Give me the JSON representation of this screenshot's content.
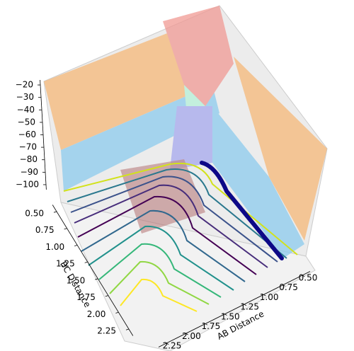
{
  "chart_data": {
    "type": "surface3d",
    "xlabel": "AB Distance",
    "ylabel": "BC Distance",
    "xlim": [
      0.4,
      2.35
    ],
    "ylim": [
      0.4,
      2.35
    ],
    "zlim": [
      -104,
      -16
    ],
    "xticks": [
      {
        "value": 0.5,
        "label": "0.50"
      },
      {
        "value": 0.75,
        "label": "0.75"
      },
      {
        "value": 1.0,
        "label": "1.00"
      },
      {
        "value": 1.25,
        "label": "1.25"
      },
      {
        "value": 1.5,
        "label": "1.50"
      },
      {
        "value": 1.75,
        "label": "1.75"
      },
      {
        "value": 2.0,
        "label": "2.00"
      },
      {
        "value": 2.25,
        "label": "2.25"
      }
    ],
    "yticks": [
      {
        "value": 0.5,
        "label": "0.50"
      },
      {
        "value": 0.75,
        "label": "0.75"
      },
      {
        "value": 1.0,
        "label": "1.00"
      },
      {
        "value": 1.25,
        "label": "1.25"
      },
      {
        "value": 1.5,
        "label": "1.50"
      },
      {
        "value": 1.75,
        "label": "1.75"
      },
      {
        "value": 2.0,
        "label": "2.00"
      },
      {
        "value": 2.25,
        "label": "2.25"
      }
    ],
    "zticks": [
      {
        "value": -20,
        "label": "−20"
      },
      {
        "value": -30,
        "label": "−30"
      },
      {
        "value": -40,
        "label": "−40"
      },
      {
        "value": -50,
        "label": "−50"
      },
      {
        "value": -60,
        "label": "−60"
      },
      {
        "value": -70,
        "label": "−70"
      },
      {
        "value": -80,
        "label": "−80"
      },
      {
        "value": -90,
        "label": "−90"
      },
      {
        "value": -100,
        "label": "−100"
      }
    ]
  }
}
